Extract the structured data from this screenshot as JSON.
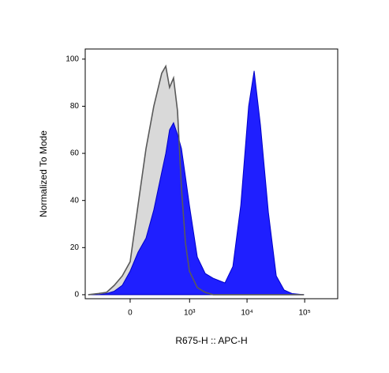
{
  "chart_data": {
    "type": "area",
    "xlabel": "R675-H :: APC-H",
    "ylabel": "Normalized To Mode",
    "xscale": "biexponential",
    "x": [
      -483,
      -305,
      -205,
      -127,
      -60,
      0,
      60,
      127,
      205,
      305,
      367,
      434,
      515,
      609,
      718,
      846,
      993,
      1367,
      1880,
      2580,
      4140,
      5680,
      7790,
      10660,
      13290,
      17100,
      23460,
      32150,
      44000,
      60300,
      97000
    ],
    "series": [
      {
        "color": "#d9d9d9",
        "edgecolor": "#5a5a5a",
        "values": [
          0,
          0.5,
          1,
          4,
          8,
          14,
          38,
          62,
          80,
          94,
          97,
          88,
          92,
          78,
          45,
          22,
          10,
          3,
          1,
          0,
          0,
          0,
          0,
          0,
          0,
          0,
          0,
          0,
          0,
          0,
          0
        ]
      },
      {
        "color": "#1f1fff",
        "edgecolor": "#0000c8",
        "values": [
          0,
          0,
          0.5,
          1.5,
          4,
          10,
          18,
          24,
          36,
          52,
          60,
          70,
          73,
          68,
          62,
          50,
          38,
          16,
          9,
          7,
          5,
          12,
          38,
          80,
          95,
          72,
          35,
          8,
          2,
          0.5,
          0
        ]
      }
    ],
    "xlim": [
      -550,
      374000
    ],
    "xticks": [
      0,
      {
        "value": 1000,
        "label": "10³"
      },
      {
        "value": 10000,
        "label": "10⁴"
      },
      {
        "value": 100000,
        "label": "10⁵"
      }
    ],
    "ylim": [
      -1.7,
      104.3
    ],
    "yticks": [
      0,
      20,
      40,
      60,
      80,
      100
    ]
  }
}
